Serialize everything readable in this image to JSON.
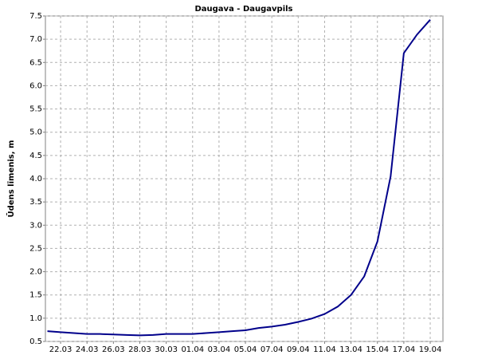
{
  "chart_data": {
    "type": "line",
    "title": "Daugava - Daugavpils",
    "y_label": "Ūdens līmenis, m",
    "x": [
      "21.03",
      "22.03",
      "23.03",
      "24.03",
      "25.03",
      "26.03",
      "27.03",
      "28.03",
      "29.03",
      "30.03",
      "31.03",
      "01.04",
      "02.04",
      "03.04",
      "04.04",
      "05.04",
      "06.04",
      "07.04",
      "08.04",
      "09.04",
      "10.04",
      "11.04",
      "12.04",
      "13.04",
      "14.04",
      "15.04",
      "16.04",
      "17.04",
      "18.04",
      "19.04"
    ],
    "series": [
      {
        "name": "Daugava - Daugavpils",
        "color": "#00008b",
        "values": [
          0.72,
          0.7,
          0.68,
          0.66,
          0.66,
          0.65,
          0.64,
          0.63,
          0.64,
          0.66,
          0.66,
          0.66,
          0.68,
          0.7,
          0.72,
          0.74,
          0.79,
          0.82,
          0.86,
          0.92,
          0.99,
          1.09,
          1.25,
          1.5,
          1.9,
          2.65,
          4.05,
          6.7,
          7.1,
          7.42
        ]
      }
    ],
    "xticks": [
      "22.03",
      "24.03",
      "26.03",
      "28.03",
      "30.03",
      "01.04",
      "03.04",
      "05.04",
      "07.04",
      "09.04",
      "11.04",
      "13.04",
      "15.04",
      "17.04",
      "19.04"
    ],
    "ylim": [
      0.5,
      7.5
    ],
    "yticks": [
      {
        "value": 0.5,
        "label": "0.5"
      },
      {
        "value": 1,
        "label": "1.0"
      },
      {
        "value": 1.5,
        "label": "1.5"
      },
      {
        "value": 2,
        "label": "2.0"
      },
      {
        "value": 2.5,
        "label": "2.5"
      },
      {
        "value": 3,
        "label": "3.0"
      },
      {
        "value": 3.5,
        "label": "3.5"
      },
      {
        "value": 4,
        "label": "4.0"
      },
      {
        "value": 4.5,
        "label": "4.5"
      },
      {
        "value": 5,
        "label": "5.0"
      },
      {
        "value": 5.5,
        "label": "5.5"
      },
      {
        "value": 6,
        "label": "6.0"
      },
      {
        "value": 6.5,
        "label": "6.5"
      },
      {
        "value": 7,
        "label": "7.0"
      },
      {
        "value": 7.5,
        "label": "7.5"
      }
    ],
    "grid": true
  }
}
